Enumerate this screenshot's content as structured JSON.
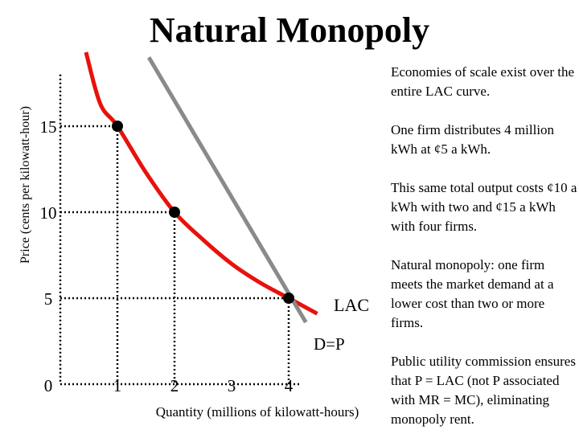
{
  "chart_data": {
    "type": "line",
    "title": "Natural Monopoly",
    "xlabel": "Quantity (millions of kilowatt-hours)",
    "ylabel": "Price (cents per kilowatt-hour)",
    "x_ticks": [
      "0",
      "1",
      "2",
      "3",
      "4"
    ],
    "y_ticks": [
      "15",
      "10",
      "5"
    ],
    "xlim": [
      0,
      4.5
    ],
    "ylim": [
      0,
      19.5
    ],
    "grid": false,
    "series": [
      {
        "name": "LAC",
        "color": "#e8120c",
        "points": [
          [
            0.45,
            19.3
          ],
          [
            0.7,
            16.3
          ],
          [
            1,
            15
          ],
          [
            1.5,
            12.3
          ],
          [
            2,
            10
          ],
          [
            2.5,
            8.4
          ],
          [
            3,
            7
          ],
          [
            3.5,
            5.9
          ],
          [
            4,
            5
          ],
          [
            4.5,
            4.1
          ]
        ]
      },
      {
        "name": "D=P",
        "color": "#8a8a8a",
        "points": [
          [
            1.55,
            19
          ],
          [
            4.3,
            3.6
          ]
        ]
      }
    ],
    "highlighted_points": [
      [
        1,
        15
      ],
      [
        2,
        10
      ],
      [
        4,
        5
      ]
    ],
    "guide_line_style": "dotted"
  },
  "notes": [
    "Economies of scale exist over the entire LAC curve.",
    "One firm distributes 4 million kWh at ¢5 a kWh.",
    "This same total output costs ¢10 a kWh with two and ¢15 a kWh with four firms.",
    "Natural monopoly: one firm meets the market demand at a lower cost than two or more firms.",
    "Public utility commission ensures that P = LAC (not P associated with MR = MC), eliminating monopoly rent."
  ]
}
